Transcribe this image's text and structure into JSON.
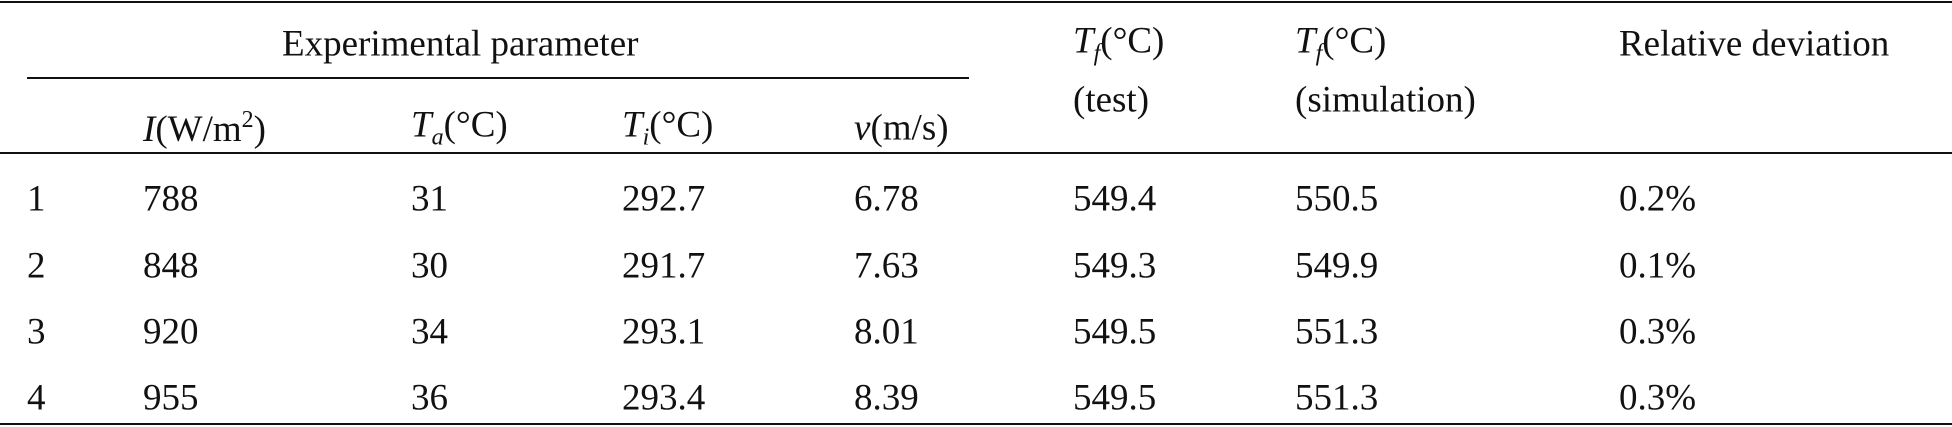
{
  "table": {
    "group_header": "Experimental parameter",
    "parameter_headers": [
      {
        "symbol": "I",
        "unit": "(W/m",
        "superscript": "2",
        "unit_end": ")"
      },
      {
        "symbol": "T",
        "subscript": "a",
        "unit": "(°C)"
      },
      {
        "symbol": "T",
        "subscript": "i",
        "unit": "(°C)"
      },
      {
        "symbol": "v",
        "unit": "(m/s)"
      }
    ],
    "result_headers": [
      {
        "symbol": "T",
        "subscript": "f",
        "unit": "(°C)",
        "note": "(test)"
      },
      {
        "symbol": "T",
        "subscript": "f",
        "unit": "(°C)",
        "note": "(simulation)"
      },
      {
        "text": "Relative deviation"
      }
    ],
    "rows": [
      [
        "1",
        "788",
        "31",
        "292.7",
        "6.78",
        "549.4",
        "550.5",
        "0.2%"
      ],
      [
        "2",
        "848",
        "30",
        "291.7",
        "7.63",
        "549.3",
        "549.9",
        "0.1%"
      ],
      [
        "3",
        "920",
        "34",
        "293.1",
        "8.01",
        "549.5",
        "551.3",
        "0.3%"
      ],
      [
        "4",
        "955",
        "36",
        "293.4",
        "8.39",
        "549.5",
        "551.3",
        "0.3%"
      ]
    ]
  }
}
